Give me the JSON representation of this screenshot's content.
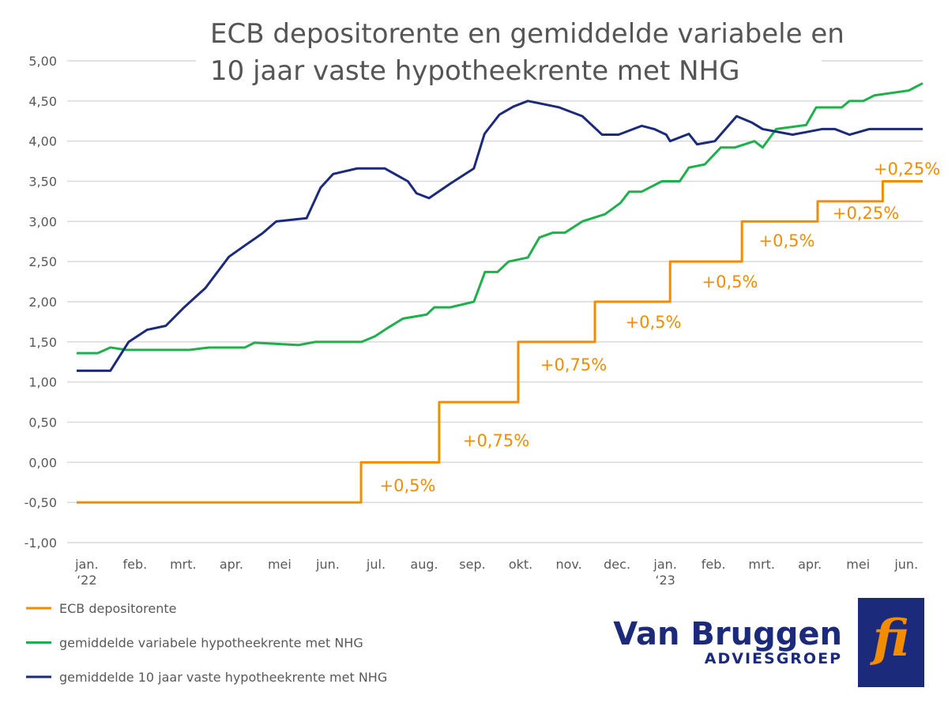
{
  "chart_data": {
    "type": "line",
    "title": [
      "ECB depositorente en gemiddelde variabele en",
      "10 jaar vaste hypotheekrente met NHG"
    ],
    "xlim": [
      -0.21,
      17.34
    ],
    "xticks": [
      {
        "value": 0,
        "label": "jan.\n‘22"
      },
      {
        "value": 1,
        "label": "feb."
      },
      {
        "value": 2,
        "label": "mrt."
      },
      {
        "value": 3,
        "label": "apr."
      },
      {
        "value": 4,
        "label": "mei"
      },
      {
        "value": 5,
        "label": "jun."
      },
      {
        "value": 6,
        "label": "jul."
      },
      {
        "value": 7,
        "label": "aug."
      },
      {
        "value": 8,
        "label": "sep."
      },
      {
        "value": 9,
        "label": "okt."
      },
      {
        "value": 10,
        "label": "nov."
      },
      {
        "value": 11,
        "label": "dec."
      },
      {
        "value": 12,
        "label": "jan.\n‘23"
      },
      {
        "value": 13,
        "label": "feb."
      },
      {
        "value": 14,
        "label": "mrt."
      },
      {
        "value": 15,
        "label": "apr."
      },
      {
        "value": 16,
        "label": "mei"
      },
      {
        "value": 17,
        "label": "jun."
      }
    ],
    "ylim": [
      -1,
      5
    ],
    "yticks": [
      {
        "value": 5,
        "label": "5,00"
      },
      {
        "value": 4.5,
        "label": "4,50"
      },
      {
        "value": 4,
        "label": "4,00"
      },
      {
        "value": 3.5,
        "label": "3,50"
      },
      {
        "value": 3,
        "label": "3,00"
      },
      {
        "value": 2.5,
        "label": "2,50"
      },
      {
        "value": 2,
        "label": "2,00"
      },
      {
        "value": 1.5,
        "label": "1,50"
      },
      {
        "value": 1,
        "label": "1,00"
      },
      {
        "value": 0.5,
        "label": "0,50"
      },
      {
        "value": 0,
        "label": "0,00"
      },
      {
        "value": -0.5,
        "label": "-0,50"
      },
      {
        "value": -1,
        "label": "-1,00"
      }
    ],
    "grid": true,
    "legend": "bottom-left",
    "series": [
      {
        "name": "ECB depositorente",
        "color": "#f28c00",
        "x": [
          -0.21,
          5.69,
          5.69,
          7.31,
          7.31,
          8.95,
          8.95,
          10.54,
          10.54,
          12.1,
          12.1,
          13.59,
          13.59,
          15.16,
          15.16,
          16.51,
          16.51,
          17.34
        ],
        "values": [
          -0.5,
          -0.5,
          0,
          0,
          0.75,
          0.75,
          1.5,
          1.5,
          2,
          2,
          2.5,
          2.5,
          3,
          3,
          3.25,
          3.25,
          3.5,
          3.5
        ]
      },
      {
        "name": "gemiddelde variabele hypotheekrente met NHG",
        "color": "#1db04b",
        "x": [
          -0.21,
          0.23,
          0.49,
          0.82,
          2.13,
          2.54,
          3.28,
          3.48,
          4.39,
          4.75,
          5.7,
          5.98,
          6.26,
          6.56,
          7.05,
          7.21,
          7.54,
          8.03,
          8.26,
          8.52,
          8.75,
          9.15,
          9.39,
          9.67,
          9.92,
          10.28,
          10.75,
          11.07,
          11.25,
          11.51,
          11.93,
          12.3,
          12.49,
          12.82,
          13.15,
          13.44,
          13.85,
          14.02,
          14.3,
          14.92,
          15.13,
          15.66,
          15.82,
          16.11,
          16.34,
          17.05,
          17.34
        ],
        "values": [
          1.36,
          1.36,
          1.43,
          1.4,
          1.4,
          1.43,
          1.43,
          1.49,
          1.46,
          1.5,
          1.5,
          1.57,
          1.68,
          1.79,
          1.84,
          1.93,
          1.93,
          2,
          2.37,
          2.37,
          2.5,
          2.55,
          2.8,
          2.86,
          2.86,
          3,
          3.09,
          3.23,
          3.37,
          3.37,
          3.5,
          3.5,
          3.67,
          3.71,
          3.92,
          3.92,
          4,
          3.92,
          4.15,
          4.2,
          4.42,
          4.42,
          4.5,
          4.5,
          4.57,
          4.63,
          4.72
        ]
      },
      {
        "name": "gemiddelde 10 jaar vaste hypotheekrente met NHG",
        "color": "#1b2a7a",
        "x": [
          -0.21,
          0.49,
          0.87,
          1.25,
          1.64,
          2.02,
          2.46,
          2.95,
          3.28,
          3.64,
          3.93,
          4.56,
          4.85,
          5.11,
          5.61,
          6.18,
          6.66,
          6.84,
          7.1,
          7.54,
          8.03,
          8.25,
          8.56,
          8.85,
          9.15,
          9.8,
          10.28,
          10.69,
          11.03,
          11.51,
          11.77,
          12.02,
          12.1,
          12.49,
          12.66,
          13.03,
          13.48,
          13.8,
          14.02,
          14.64,
          15.25,
          15.52,
          15.82,
          16.23,
          17.34
        ],
        "values": [
          1.14,
          1.14,
          1.5,
          1.65,
          1.7,
          1.93,
          2.17,
          2.56,
          2.7,
          2.85,
          3,
          3.04,
          3.42,
          3.59,
          3.66,
          3.66,
          3.5,
          3.35,
          3.29,
          3.47,
          3.66,
          4.09,
          4.33,
          4.43,
          4.5,
          4.42,
          4.31,
          4.08,
          4.08,
          4.19,
          4.15,
          4.08,
          4,
          4.09,
          3.96,
          4,
          4.31,
          4.23,
          4.15,
          4.08,
          4.15,
          4.15,
          4.08,
          4.15,
          4.15
        ]
      }
    ],
    "annotations": [
      "+0,5%",
      "+0,75%",
      "+0,75%",
      "+0,5%",
      "+0,5%",
      "+0,5%",
      "+0,25%",
      "+0,25%"
    ]
  },
  "logo": {
    "name": "Van Bruggen",
    "tagline": "ADVIESGROEP",
    "mark": "fi"
  }
}
